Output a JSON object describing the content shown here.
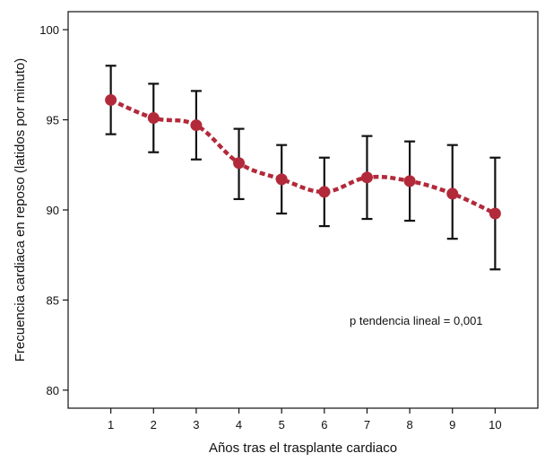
{
  "chart_data": {
    "type": "line",
    "title": "",
    "xlabel": "Años tras el trasplante cardiaco",
    "ylabel": "Frecuencia cardiaca en reposo (latidos por minuto)",
    "xlim": [
      0,
      11
    ],
    "ylim": [
      79,
      101
    ],
    "x_ticks": [
      1,
      2,
      3,
      4,
      5,
      6,
      7,
      8,
      9,
      10
    ],
    "y_ticks": [
      80,
      85,
      90,
      95,
      100
    ],
    "grid": false,
    "legend": "none",
    "annotation": "p tendencia lineal = 0,001",
    "series": [
      {
        "x": [
          1,
          2,
          3,
          4,
          5,
          6,
          7,
          8,
          9,
          10
        ],
        "values": [
          96.1,
          95.1,
          94.7,
          92.6,
          91.7,
          91.0,
          91.8,
          91.6,
          90.9,
          89.8
        ],
        "error_low": [
          94.2,
          93.2,
          92.8,
          90.6,
          89.8,
          89.1,
          89.5,
          89.4,
          88.4,
          86.7
        ],
        "error_high": [
          98.0,
          97.0,
          96.6,
          94.5,
          93.6,
          92.9,
          94.1,
          93.8,
          93.6,
          92.9
        ],
        "color": "#b22a3a",
        "line_style": "dotted"
      }
    ]
  }
}
